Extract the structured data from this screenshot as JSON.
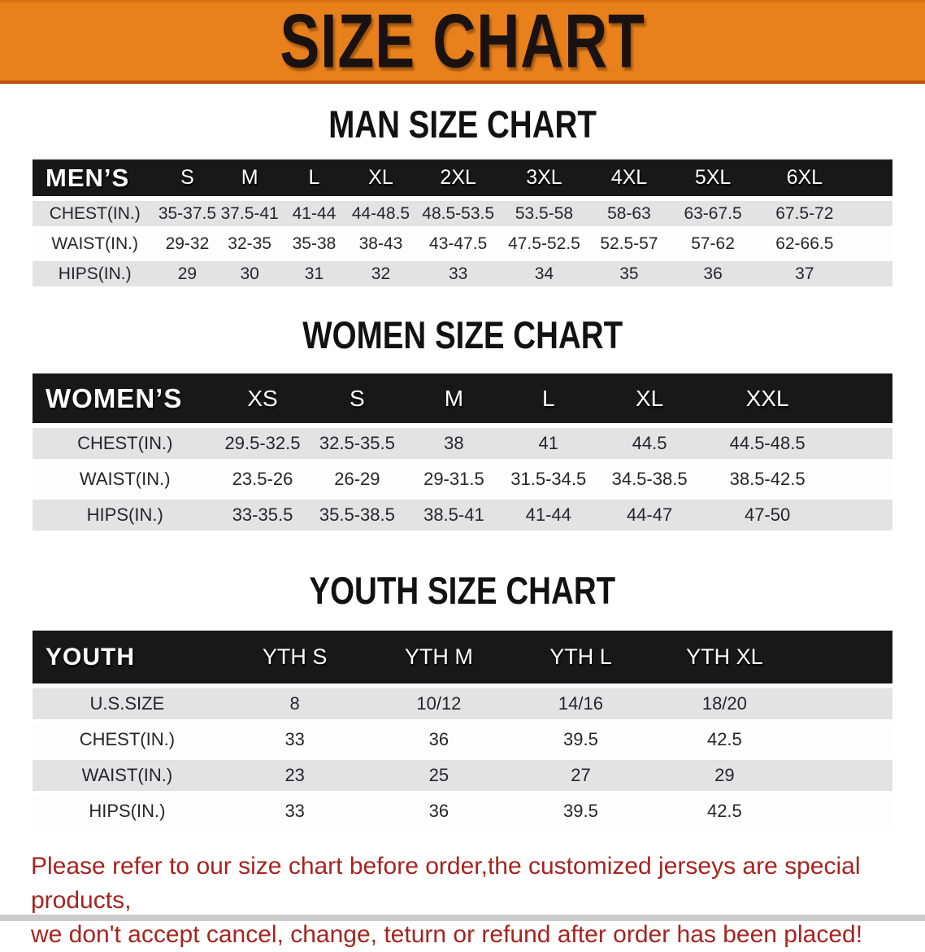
{
  "banner": {
    "title": "SIZE CHART"
  },
  "colors": {
    "banner_bg": "#E8811B",
    "header_bg": "#181818",
    "row_gray": "#E3E3E4",
    "row_white": "#FDFDFD",
    "notice_red": "#A6241F",
    "strip_gray": "#CCCCCC"
  },
  "sections": [
    {
      "id": "men",
      "heading": "MAN SIZE CHART",
      "table": {
        "label": "MEN’S",
        "columns": [
          "S",
          "M",
          "L",
          "XL",
          "2XL",
          "3XL",
          "4XL",
          "5XL",
          "6XL"
        ],
        "rows": [
          {
            "label": "CHEST(IN.)",
            "values": [
              "35-37.5",
              "37.5-41",
              "41-44",
              "44-48.5",
              "48.5-53.5",
              "53.5-58",
              "58-63",
              "63-67.5",
              "67.5-72"
            ]
          },
          {
            "label": "WAIST(IN.)",
            "values": [
              "29-32",
              "32-35",
              "35-38",
              "38-43",
              "43-47.5",
              "47.5-52.5",
              "52.5-57",
              "57-62",
              "62-66.5"
            ]
          },
          {
            "label": "HIPS(IN.)",
            "values": [
              "29",
              "30",
              "31",
              "32",
              "33",
              "34",
              "35",
              "36",
              "37"
            ]
          }
        ]
      }
    },
    {
      "id": "women",
      "heading": "WOMEN SIZE CHART",
      "table": {
        "label": "WOMEN’S",
        "columns": [
          "XS",
          "S",
          "M",
          "L",
          "XL",
          "XXL"
        ],
        "rows": [
          {
            "label": "CHEST(IN.)",
            "values": [
              "29.5-32.5",
              "32.5-35.5",
              "38",
              "41",
              "44.5",
              "44.5-48.5"
            ]
          },
          {
            "label": "WAIST(IN.)",
            "values": [
              "23.5-26",
              "26-29",
              "29-31.5",
              "31.5-34.5",
              "34.5-38.5",
              "38.5-42.5"
            ]
          },
          {
            "label": "HIPS(IN.)",
            "values": [
              "33-35.5",
              "35.5-38.5",
              "38.5-41",
              "41-44",
              "44-47",
              "47-50"
            ]
          }
        ]
      }
    },
    {
      "id": "youth",
      "heading": "YOUTH SIZE CHART",
      "table": {
        "label": "YOUTH",
        "columns": [
          "YTH S",
          "YTH M",
          "YTH L",
          "YTH XL"
        ],
        "rows": [
          {
            "label": "U.S.SIZE",
            "values": [
              "8",
              "10/12",
              "14/16",
              "18/20"
            ]
          },
          {
            "label": "CHEST(IN.)",
            "values": [
              "33",
              "36",
              "39.5",
              "42.5"
            ]
          },
          {
            "label": "WAIST(IN.)",
            "values": [
              "23",
              "25",
              "27",
              "29"
            ]
          },
          {
            "label": "HIPS(IN.)",
            "values": [
              "33",
              "36",
              "39.5",
              "42.5"
            ]
          }
        ]
      }
    }
  ],
  "footer": {
    "lines": [
      "Please refer to our size chart before order,the customized jerseys are special products,",
      "we don't accept cancel, change, teturn or refund after order has been placed!"
    ]
  }
}
